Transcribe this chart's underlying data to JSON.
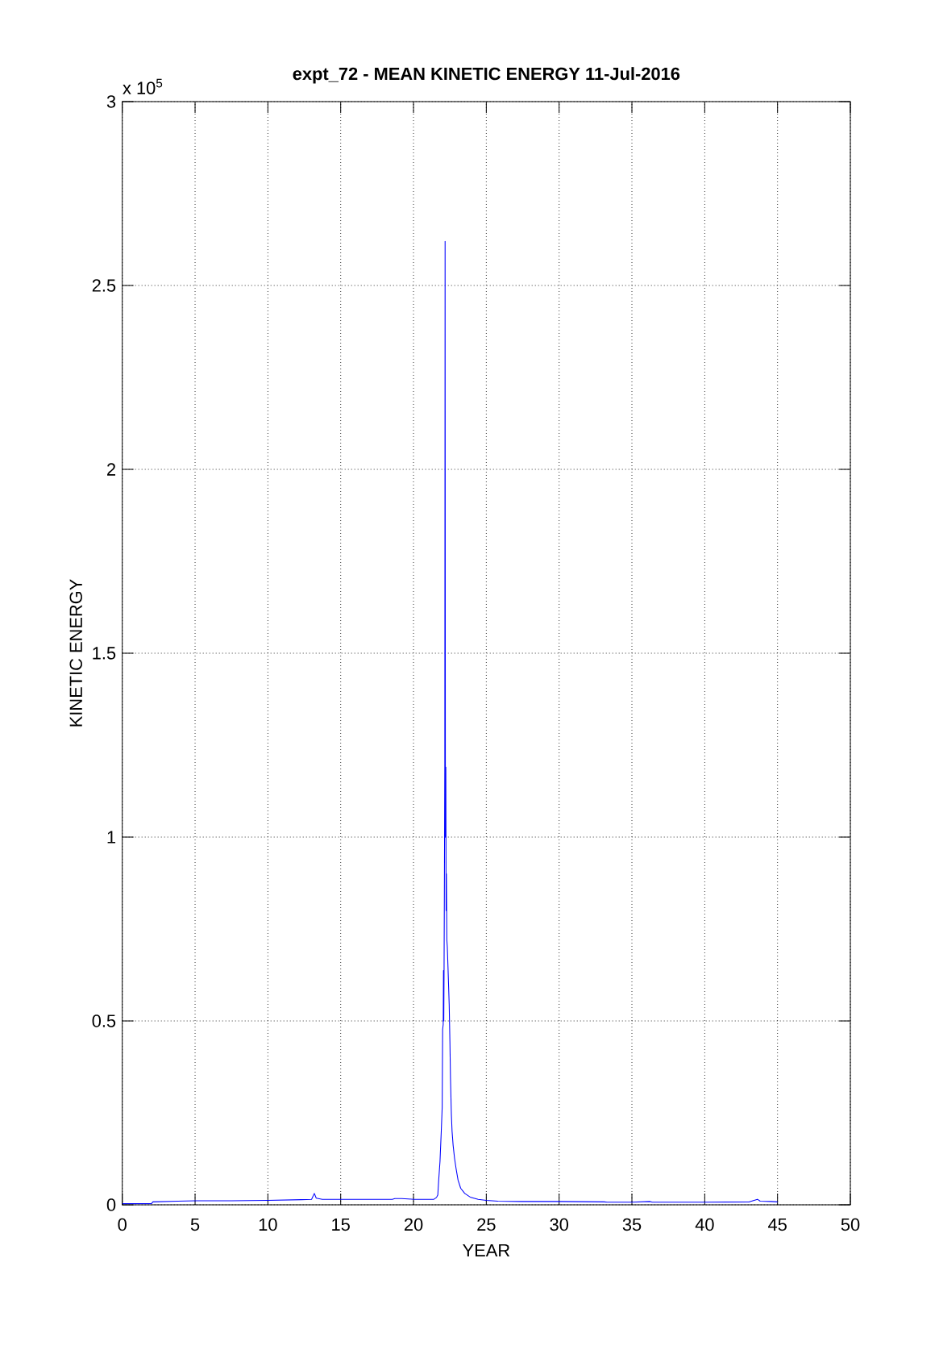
{
  "chart_data": {
    "type": "line",
    "title": "expt_72 - MEAN KINETIC ENERGY 11-Jul-2016",
    "xlabel": "YEAR",
    "ylabel": "KINETIC ENERGY",
    "annotations": [
      "x 10$^{5}$"
    ],
    "x": [
      0,
      1.5,
      2.0,
      2.1,
      3.8,
      5.0,
      7.5,
      10.0,
      12.3,
      13.0,
      13.19,
      13.32,
      13.74,
      15.0,
      17.0,
      18.54,
      18.72,
      19.18,
      19.64,
      20.0,
      21.4,
      21.58,
      21.67,
      21.73,
      21.82,
      21.91,
      21.97,
      22.0,
      22.04,
      22.06,
      22.08,
      22.1,
      22.12,
      22.15,
      22.17,
      22.19,
      22.22,
      22.24,
      22.26,
      22.29,
      22.32,
      22.37,
      22.45,
      22.5,
      22.54,
      22.6,
      22.65,
      22.72,
      22.82,
      22.93,
      23.06,
      23.24,
      23.52,
      23.89,
      24.44,
      25.0,
      25.8,
      27.4,
      30.0,
      33.1,
      33.3,
      35.0,
      36.25,
      36.4,
      40.0,
      43.07,
      43.62,
      43.81,
      44.55,
      45.0
    ],
    "series": [
      {
        "color": "#0000ff",
        "values": [
          0.003,
          0.003,
          0.003,
          0.008,
          0.01,
          0.011,
          0.011,
          0.012,
          0.014,
          0.015,
          0.031,
          0.018,
          0.015,
          0.015,
          0.015,
          0.015,
          0.017,
          0.017,
          0.016,
          0.015,
          0.015,
          0.02,
          0.027,
          0.067,
          0.118,
          0.203,
          0.265,
          0.477,
          0.49,
          0.637,
          0.5,
          0.65,
          0.85,
          1.2,
          2.62,
          1.0,
          1.19,
          0.8,
          0.9,
          0.72,
          0.703,
          0.645,
          0.546,
          0.444,
          0.345,
          0.246,
          0.199,
          0.162,
          0.126,
          0.097,
          0.067,
          0.045,
          0.031,
          0.021,
          0.015,
          0.012,
          0.01,
          0.009,
          0.009,
          0.008,
          0.007,
          0.007,
          0.009,
          0.007,
          0.007,
          0.008,
          0.015,
          0.01,
          0.009,
          0.008
        ]
      }
    ],
    "xlim": [
      0,
      50
    ],
    "ylim": [
      0,
      3
    ],
    "xticks": [
      0,
      5,
      10,
      15,
      20,
      25,
      30,
      35,
      40,
      45,
      50
    ],
    "yticks": [
      0,
      0.5,
      1,
      1.5,
      2,
      2.5,
      3
    ],
    "grid": true,
    "line_style": "solid"
  }
}
